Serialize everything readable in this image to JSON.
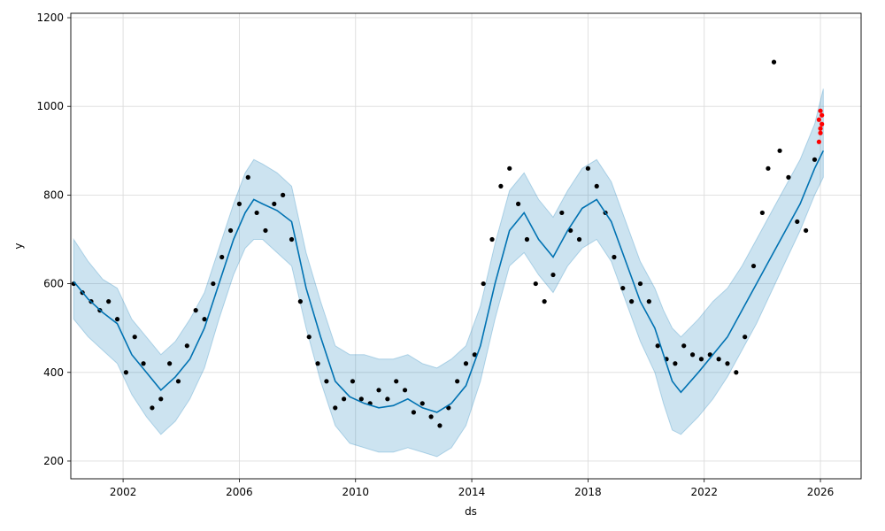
{
  "chart_data": {
    "type": "line",
    "title": "",
    "xlabel": "ds",
    "ylabel": "y",
    "xlim": [
      2000.2,
      2027.4
    ],
    "ylim": [
      160,
      1210
    ],
    "grid": true,
    "legend": "none",
    "x_ticks": [
      2002,
      2006,
      2010,
      2014,
      2018,
      2022,
      2026
    ],
    "x_tick_labels": [
      "2002",
      "2006",
      "2010",
      "2014",
      "2018",
      "2022",
      "2026"
    ],
    "y_ticks": [
      200,
      400,
      600,
      800,
      1000,
      1200
    ],
    "y_tick_labels": [
      "200",
      "400",
      "600",
      "800",
      "1000",
      "1200"
    ],
    "colors": {
      "forecast": "#0072b2",
      "band_fill": "#0072b2",
      "band_fill_opacity": 0.2,
      "observed": "#000000",
      "recent": "#ff0000"
    },
    "forecast": {
      "x": [
        2000.3,
        2000.8,
        2001.3,
        2001.8,
        2002.3,
        2002.8,
        2003.3,
        2003.8,
        2004.3,
        2004.8,
        2005.3,
        2005.8,
        2006.2,
        2006.5,
        2006.8,
        2007.3,
        2007.8,
        2008.3,
        2008.8,
        2009.3,
        2009.8,
        2010.3,
        2010.8,
        2011.3,
        2011.8,
        2012.3,
        2012.8,
        2013.3,
        2013.8,
        2014.3,
        2014.8,
        2015.3,
        2015.8,
        2016.3,
        2016.8,
        2017.3,
        2017.8,
        2018.3,
        2018.8,
        2019.3,
        2019.8,
        2020.3,
        2020.6,
        2020.9,
        2021.2,
        2021.8,
        2022.3,
        2022.8,
        2023.3,
        2023.8,
        2024.3,
        2024.8,
        2025.3,
        2025.8,
        2026.1
      ],
      "y": [
        605,
        565,
        535,
        510,
        440,
        400,
        360,
        390,
        430,
        500,
        600,
        700,
        760,
        790,
        780,
        765,
        740,
        590,
        480,
        380,
        345,
        330,
        320,
        325,
        340,
        320,
        310,
        330,
        370,
        460,
        600,
        720,
        760,
        700,
        660,
        720,
        770,
        790,
        740,
        650,
        560,
        500,
        440,
        380,
        355,
        400,
        440,
        480,
        540,
        600,
        660,
        720,
        780,
        860,
        900
      ]
    },
    "uncertainty_band": {
      "x": [
        2000.3,
        2000.8,
        2001.3,
        2001.8,
        2002.3,
        2002.8,
        2003.3,
        2003.8,
        2004.3,
        2004.8,
        2005.3,
        2005.8,
        2006.2,
        2006.5,
        2006.8,
        2007.3,
        2007.8,
        2008.3,
        2008.8,
        2009.3,
        2009.8,
        2010.3,
        2010.8,
        2011.3,
        2011.8,
        2012.3,
        2012.8,
        2013.3,
        2013.8,
        2014.3,
        2014.8,
        2015.3,
        2015.8,
        2016.3,
        2016.8,
        2017.3,
        2017.8,
        2018.3,
        2018.8,
        2019.3,
        2019.8,
        2020.3,
        2020.6,
        2020.9,
        2021.2,
        2021.8,
        2022.3,
        2022.8,
        2023.3,
        2023.8,
        2024.3,
        2024.8,
        2025.3,
        2025.8,
        2026.1
      ],
      "lower": [
        520,
        480,
        450,
        420,
        350,
        300,
        260,
        290,
        340,
        410,
        520,
        620,
        680,
        700,
        700,
        670,
        640,
        500,
        380,
        280,
        240,
        230,
        220,
        220,
        230,
        220,
        210,
        230,
        280,
        380,
        520,
        640,
        670,
        620,
        580,
        640,
        680,
        700,
        650,
        560,
        470,
        400,
        330,
        270,
        260,
        300,
        340,
        390,
        450,
        510,
        580,
        650,
        720,
        800,
        840
      ],
      "upper": [
        700,
        650,
        610,
        590,
        520,
        480,
        440,
        470,
        520,
        580,
        680,
        780,
        850,
        880,
        870,
        850,
        820,
        670,
        560,
        460,
        440,
        440,
        430,
        430,
        440,
        420,
        410,
        430,
        460,
        550,
        690,
        810,
        850,
        790,
        750,
        810,
        860,
        880,
        830,
        740,
        650,
        590,
        540,
        500,
        480,
        520,
        560,
        590,
        640,
        700,
        760,
        820,
        880,
        960,
        1040
      ]
    },
    "observed": {
      "x": [
        2000.3,
        2000.6,
        2000.9,
        2001.2,
        2001.5,
        2001.8,
        2002.1,
        2002.4,
        2002.7,
        2003.0,
        2003.3,
        2003.6,
        2003.9,
        2004.2,
        2004.5,
        2004.8,
        2005.1,
        2005.4,
        2005.7,
        2006.0,
        2006.3,
        2006.6,
        2006.9,
        2007.2,
        2007.5,
        2007.8,
        2008.1,
        2008.4,
        2008.7,
        2009.0,
        2009.3,
        2009.6,
        2009.9,
        2010.2,
        2010.5,
        2010.8,
        2011.1,
        2011.4,
        2011.7,
        2012.0,
        2012.3,
        2012.6,
        2012.9,
        2013.2,
        2013.5,
        2013.8,
        2014.1,
        2014.4,
        2014.7,
        2015.0,
        2015.3,
        2015.6,
        2015.9,
        2016.2,
        2016.5,
        2016.8,
        2017.1,
        2017.4,
        2017.7,
        2018.0,
        2018.3,
        2018.6,
        2018.9,
        2019.2,
        2019.5,
        2019.8,
        2020.1,
        2020.4,
        2020.7,
        2021.0,
        2021.3,
        2021.6,
        2021.9,
        2022.2,
        2022.5,
        2022.8,
        2023.1,
        2023.4,
        2023.7,
        2024.0,
        2024.2,
        2024.4,
        2024.6,
        2024.9,
        2025.2,
        2025.5,
        2025.8
      ],
      "y": [
        600,
        580,
        560,
        540,
        560,
        520,
        400,
        480,
        420,
        320,
        340,
        420,
        380,
        460,
        540,
        520,
        600,
        660,
        720,
        780,
        840,
        760,
        720,
        780,
        800,
        700,
        560,
        480,
        420,
        380,
        320,
        340,
        380,
        340,
        330,
        360,
        340,
        380,
        360,
        310,
        330,
        300,
        280,
        320,
        380,
        420,
        440,
        600,
        700,
        820,
        860,
        780,
        700,
        600,
        560,
        620,
        760,
        720,
        700,
        860,
        820,
        760,
        660,
        590,
        560,
        600,
        560,
        460,
        430,
        420,
        460,
        440,
        430,
        440,
        430,
        420,
        400,
        480,
        640,
        760,
        860,
        1100,
        900,
        840,
        740,
        720,
        880
      ]
    },
    "recent": {
      "x": [
        2025.95,
        2026.0,
        2026.0,
        2026.05,
        2026.05,
        2026.0,
        2025.95
      ],
      "y": [
        920,
        950,
        990,
        980,
        960,
        940,
        970
      ]
    }
  }
}
